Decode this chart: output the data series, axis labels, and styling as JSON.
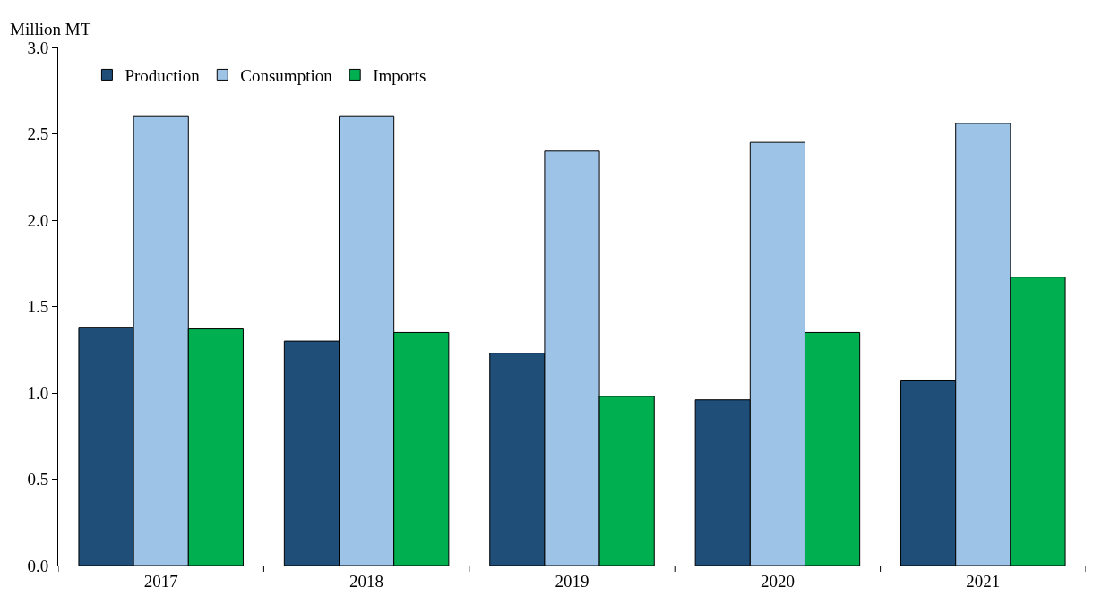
{
  "chart_data": {
    "type": "bar",
    "ylabel": "Million MT",
    "categories": [
      "2017",
      "2018",
      "2019",
      "2020",
      "2021"
    ],
    "series": [
      {
        "name": "Production",
        "color": "#1f4e79",
        "values": [
          1.38,
          1.3,
          1.23,
          0.96,
          1.07
        ]
      },
      {
        "name": "Consumption",
        "color": "#9dc3e6",
        "values": [
          2.6,
          2.6,
          2.4,
          2.45,
          2.56
        ]
      },
      {
        "name": "Imports",
        "color": "#00b050",
        "values": [
          1.37,
          1.35,
          0.98,
          1.35,
          1.67
        ]
      }
    ],
    "ylim": [
      0,
      3
    ],
    "yticks": [
      {
        "value": 0,
        "label": "0.0"
      },
      {
        "value": 0.5,
        "label": "0.5"
      },
      {
        "value": 1,
        "label": "1.0"
      },
      {
        "value": 1.5,
        "label": "1.5"
      },
      {
        "value": 2,
        "label": "2.0"
      },
      {
        "value": 2.5,
        "label": "2.5"
      },
      {
        "value": 3,
        "label": "3.0"
      }
    ],
    "grid": false,
    "legend": "top left"
  }
}
